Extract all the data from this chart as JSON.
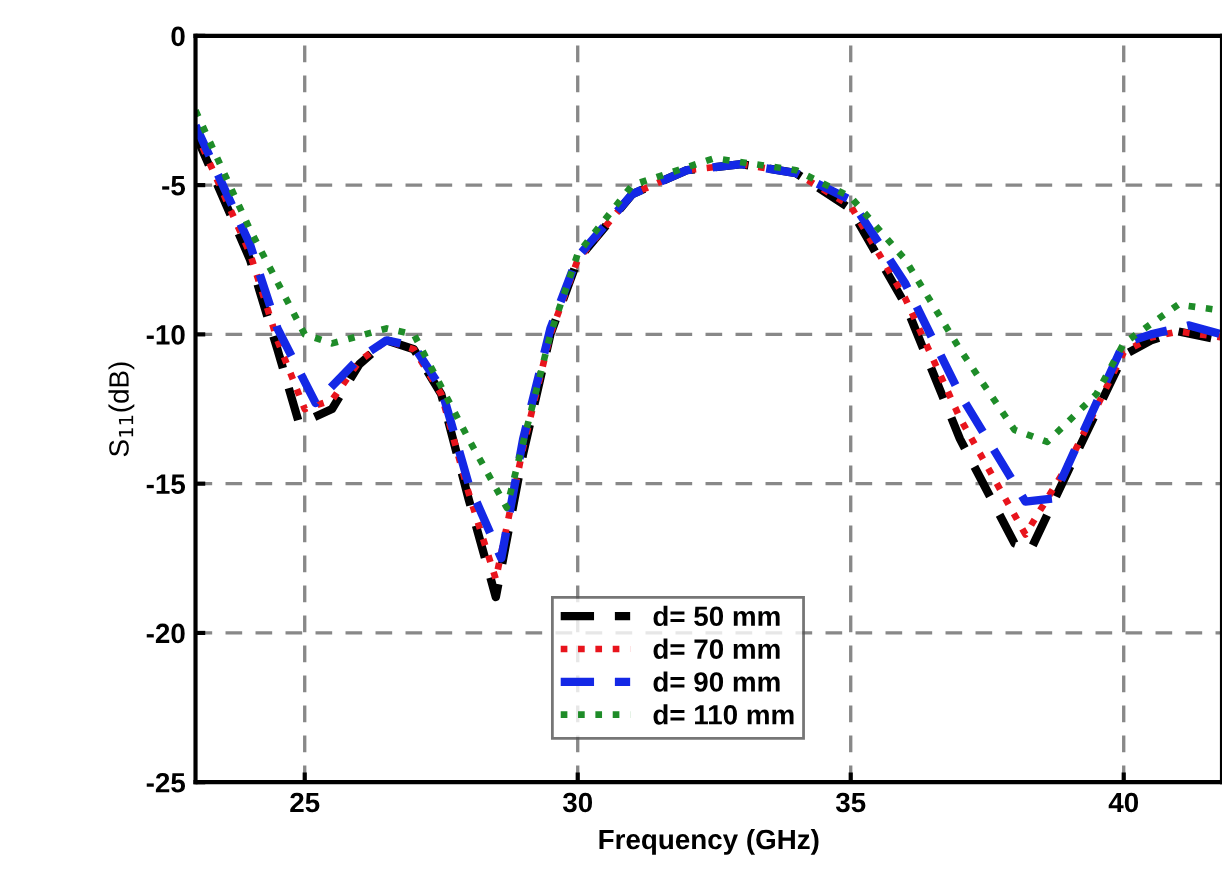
{
  "chart_data": {
    "type": "line",
    "xlabel": "Frequency (GHz)",
    "ylabel": "S$_{11}$(dB)",
    "xlim": [
      23,
      41.8
    ],
    "xticks": [
      25,
      30,
      35,
      40
    ],
    "ylim": [
      -25,
      0
    ],
    "yticks": [
      -25,
      -20,
      -15,
      -10,
      -5,
      0
    ],
    "grid": true,
    "legend": "bottom",
    "marker": "none",
    "series": [
      {
        "name": "d= 50 mm",
        "color": "#000000",
        "line_style": "dashed",
        "x": [
          23,
          24,
          24.5,
          24.9,
          25.5,
          26,
          26.5,
          27,
          27.5,
          28,
          28.5,
          29,
          29.5,
          30,
          31,
          32,
          33,
          34,
          35,
          36,
          37,
          38,
          38.3,
          39,
          40,
          40.5,
          41,
          41.8
        ],
        "values": [
          -3.3,
          -7.5,
          -10.5,
          -13.0,
          -12.5,
          -11,
          -10.2,
          -10.5,
          -12,
          -15.5,
          -18.8,
          -14,
          -10,
          -7.5,
          -5.3,
          -4.5,
          -4.3,
          -4.6,
          -5.8,
          -9,
          -13.5,
          -17,
          -17.2,
          -14.5,
          -10.7,
          -10.2,
          -9.9,
          -10.2
        ]
      },
      {
        "name": "d= 70 mm",
        "color": "#e8141c",
        "line_style": "dotted",
        "x": [
          23,
          24,
          24.5,
          25,
          25.5,
          26,
          26.5,
          27,
          27.5,
          28,
          28.5,
          29,
          29.5,
          30,
          31,
          32,
          33,
          34,
          35,
          36,
          37,
          38.2,
          39,
          40,
          40.5,
          41,
          41.8
        ],
        "values": [
          -3.2,
          -7.3,
          -10.2,
          -12.5,
          -12.2,
          -10.9,
          -10.2,
          -10.5,
          -12,
          -15.3,
          -18.2,
          -13.8,
          -10,
          -7.5,
          -5.3,
          -4.5,
          -4.3,
          -4.6,
          -5.7,
          -8.8,
          -12.8,
          -16.7,
          -14.3,
          -10.6,
          -10.1,
          -9.9,
          -10.1
        ]
      },
      {
        "name": "d= 90 mm",
        "color": "#1428e6",
        "line_style": "dashed",
        "x": [
          23,
          24,
          24.5,
          25.2,
          26,
          26.5,
          27,
          27.5,
          28,
          28.6,
          29,
          29.5,
          30,
          31,
          32,
          33,
          34,
          35,
          36,
          37,
          38.2,
          38.7,
          40,
          40.5,
          41.2,
          41.8
        ],
        "values": [
          -3.0,
          -7.0,
          -9.8,
          -12.3,
          -10.8,
          -10.2,
          -10.4,
          -11.8,
          -15,
          -17.5,
          -13.5,
          -9.8,
          -7.4,
          -5.3,
          -4.5,
          -4.3,
          -4.6,
          -5.5,
          -8.3,
          -12,
          -15.6,
          -15.5,
          -10.3,
          -10,
          -9.7,
          -10
        ]
      },
      {
        "name": "d= 110 mm",
        "color": "#1e8c28",
        "line_style": "dotted",
        "x": [
          23,
          24,
          25,
          25.5,
          26.5,
          27,
          28,
          28.7,
          29.5,
          30,
          31,
          32.5,
          34,
          35,
          36,
          37,
          38,
          38.6,
          39.5,
          40,
          41,
          41.8
        ],
        "values": [
          -2.5,
          -6.5,
          -10,
          -10.3,
          -9.8,
          -10.0,
          -13.5,
          -15.8,
          -10,
          -7.3,
          -5.0,
          -4.1,
          -4.5,
          -5.4,
          -7.5,
          -10.5,
          -13.2,
          -13.6,
          -12,
          -10.3,
          -9.0,
          -9.2
        ]
      }
    ]
  }
}
